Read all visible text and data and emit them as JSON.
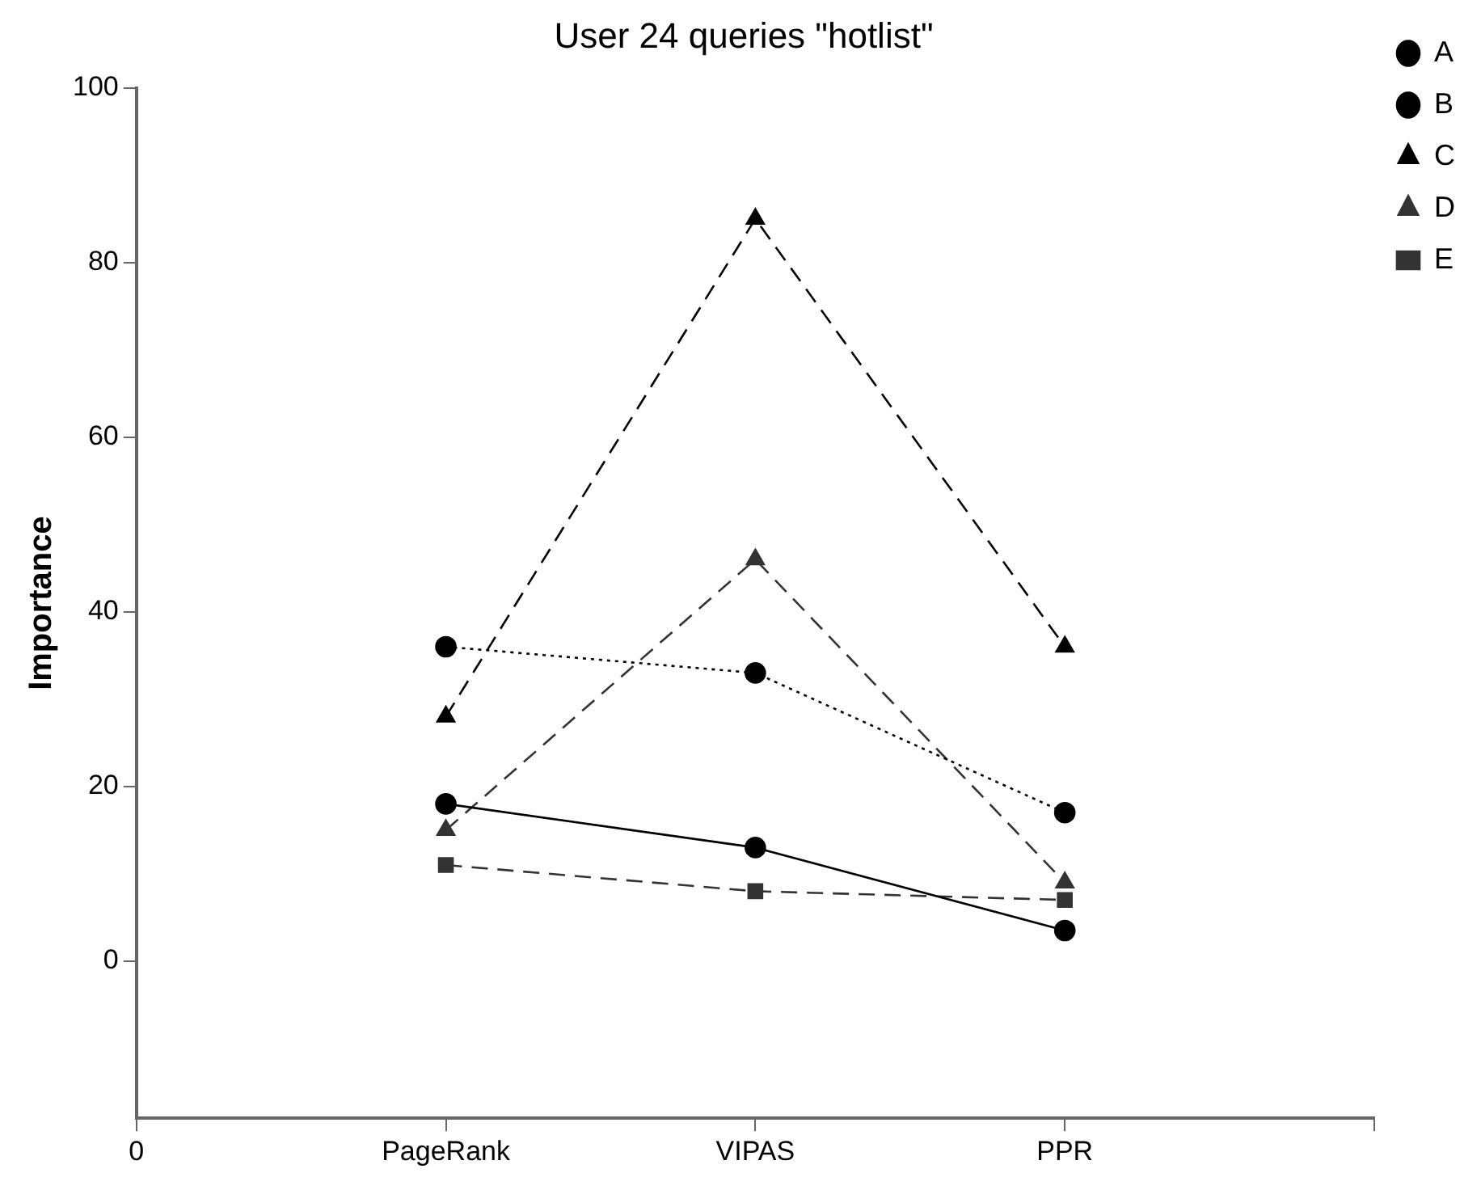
{
  "chart_data": {
    "type": "line",
    "title": "User 24 queries \"hotlist\"",
    "ylabel": "Importance",
    "categories": [
      "0",
      "PageRank",
      "VIPAS",
      "PPR",
      null
    ],
    "series": [
      {
        "name": "A",
        "color": "#000000",
        "values": [
          null,
          18,
          13,
          3.5,
          null
        ],
        "marker": "circle",
        "line_style": "solid"
      },
      {
        "name": "B",
        "color": "#000000",
        "values": [
          null,
          36,
          33,
          17,
          null
        ],
        "marker": "circle",
        "line_style": "dotted"
      },
      {
        "name": "C",
        "color": "#000000",
        "values": [
          null,
          28,
          85,
          36,
          null
        ],
        "marker": "triangle",
        "line_style": "dashed"
      },
      {
        "name": "D",
        "color": "#333333",
        "values": [
          null,
          15,
          46,
          9,
          null
        ],
        "marker": "triangle",
        "line_style": "dashed"
      },
      {
        "name": "E",
        "color": "#333333",
        "values": [
          null,
          11,
          8,
          7,
          null
        ],
        "marker": "square",
        "line_style": "dashed"
      }
    ],
    "ylim": [
      -18,
      100
    ],
    "yticks": [
      0,
      20,
      40,
      60,
      80,
      100
    ],
    "grid": false,
    "legend": "top right"
  }
}
